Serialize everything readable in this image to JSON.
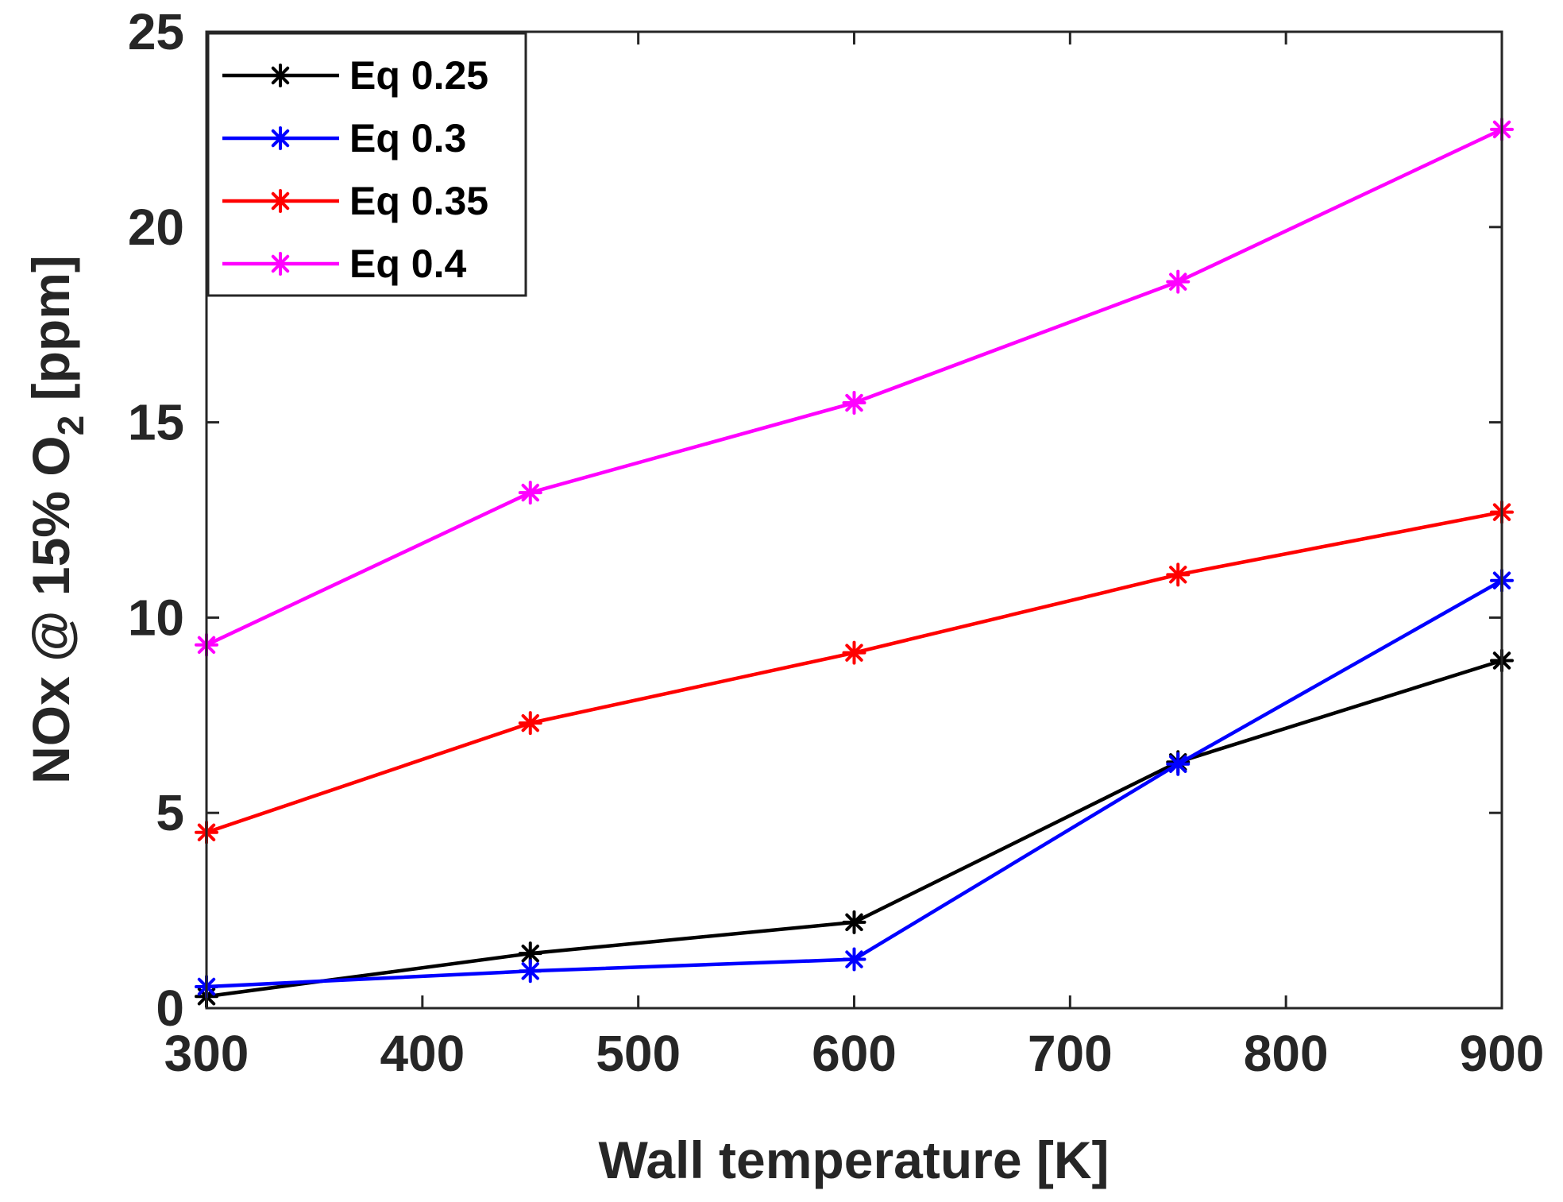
{
  "chart_data": {
    "type": "line",
    "title": "",
    "xlabel": "Wall temperature [K]",
    "ylabel": {
      "main": "NOx @ 15% O",
      "subscript": "2",
      "suffix": " [ppm]"
    },
    "xlim": [
      300,
      900
    ],
    "ylim": [
      0,
      25
    ],
    "xticks": [
      300,
      400,
      500,
      600,
      700,
      800,
      900
    ],
    "yticks": [
      0,
      5,
      10,
      15,
      20,
      25
    ],
    "x": [
      300,
      450,
      600,
      750,
      900
    ],
    "grid": false,
    "legend_position": "top-left",
    "marker": "asterisk",
    "series": [
      {
        "name": "Eq 0.25",
        "color": "#000000",
        "values": [
          0.3,
          1.4,
          2.2,
          6.3,
          8.9
        ]
      },
      {
        "name": "Eq 0.3",
        "color": "#0000ff",
        "values": [
          0.55,
          0.95,
          1.25,
          6.25,
          10.95
        ]
      },
      {
        "name": "Eq 0.35",
        "color": "#ff0000",
        "values": [
          4.5,
          7.3,
          9.1,
          11.1,
          12.7
        ]
      },
      {
        "name": "Eq 0.4",
        "color": "#ff00ff",
        "values": [
          9.3,
          13.2,
          15.5,
          18.6,
          22.5
        ]
      }
    ]
  }
}
